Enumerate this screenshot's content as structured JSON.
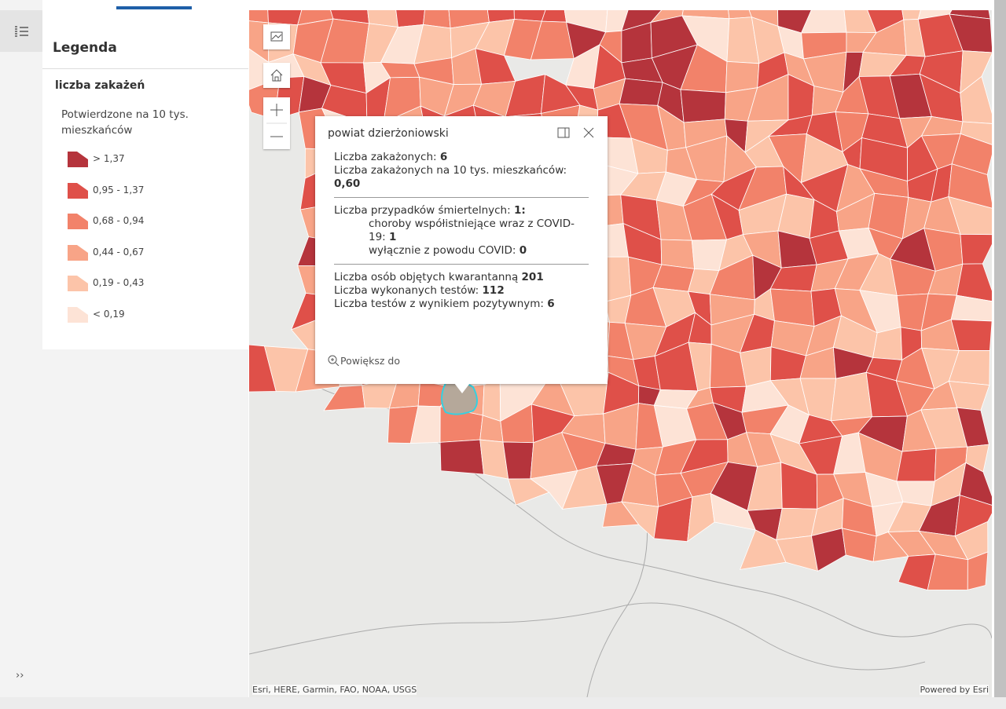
{
  "legend": {
    "title": "Legenda",
    "layer": "liczba zakażeń",
    "field": "Potwierdzone na 10 tys. mieszkańców",
    "items": [
      {
        "label": "> 1,37",
        "color": "#b5343c"
      },
      {
        "label": "0,95 - 1,37",
        "color": "#df5049"
      },
      {
        "label": "0,68 - 0,94",
        "color": "#f2826a"
      },
      {
        "label": "0,44 - 0,67",
        "color": "#f8a487"
      },
      {
        "label": "0,19 - 0,43",
        "color": "#fcc4a9"
      },
      {
        "label": "< 0,19",
        "color": "#fde3d6"
      }
    ],
    "expand": "››"
  },
  "popup": {
    "title": "powiat dzierżoniowski",
    "sections": [
      [
        {
          "label": "Liczba zakażonych:",
          "value": "6"
        },
        {
          "label": "Liczba zakażonych na 10 tys. mieszkańców:",
          "value": "0,60",
          "wrap": true
        }
      ],
      [
        {
          "label": "Liczba przypadków śmiertelnych:",
          "value": "1:"
        },
        {
          "label": "choroby współistniejące wraz z COVID-19:",
          "value": "1",
          "indent": true
        },
        {
          "label": "wyłącznie z powodu COVID:",
          "value": "0",
          "indent": true
        }
      ],
      [
        {
          "label": "Liczba osób objętych kwarantanną",
          "value": "201"
        },
        {
          "label": "Liczba wykonanych testów:",
          "value": "112"
        },
        {
          "label": "Liczba testów z wynikiem pozytywnym:",
          "value": "6"
        }
      ]
    ],
    "zoom": "Powiększ do"
  },
  "map": {
    "attribution": "Esri, HERE, Garmin, FAO, NOAA, USGS",
    "powered": "Powered by Esri"
  }
}
